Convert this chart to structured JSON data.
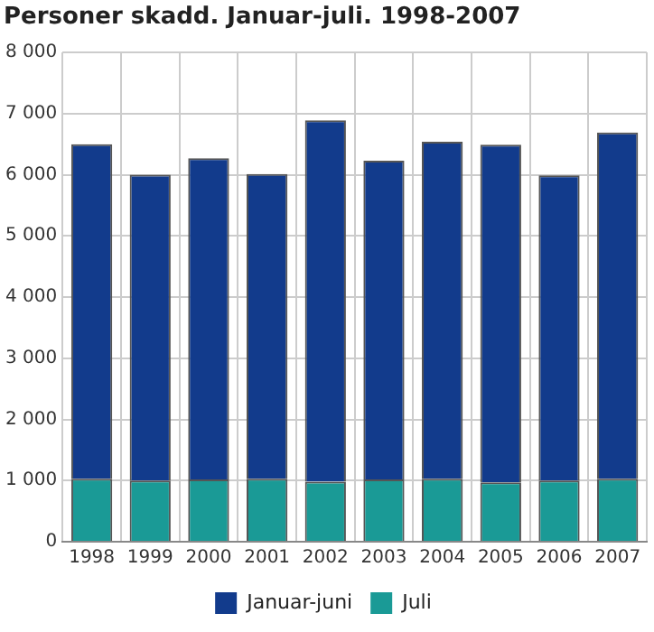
{
  "chart_data": {
    "type": "bar",
    "title": "Personer skadd. Januar-juli. 1998-2007",
    "stacked": true,
    "categories": [
      "1998",
      "1999",
      "2000",
      "2001",
      "2002",
      "2003",
      "2004",
      "2005",
      "2006",
      "2007"
    ],
    "series": [
      {
        "name": "Juli",
        "color": "#1a9a96",
        "values": [
          1030,
          1000,
          1020,
          1030,
          980,
          1020,
          1030,
          970,
          1000,
          1030
        ]
      },
      {
        "name": "Januar-juni",
        "color": "#123b8c",
        "values": [
          5470,
          5000,
          5250,
          4980,
          5910,
          5210,
          5510,
          5520,
          4990,
          5660
        ]
      }
    ],
    "ylim": [
      0,
      8000
    ],
    "yticks": [
      {
        "value": 0,
        "label": "0"
      },
      {
        "value": 1000,
        "label": "1 000"
      },
      {
        "value": 2000,
        "label": "2 000"
      },
      {
        "value": 3000,
        "label": "3 000"
      },
      {
        "value": 4000,
        "label": "4 000"
      },
      {
        "value": 5000,
        "label": "5 000"
      },
      {
        "value": 6000,
        "label": "6 000"
      },
      {
        "value": 7000,
        "label": "7 000"
      },
      {
        "value": 8000,
        "label": "8 000"
      }
    ],
    "grid": true,
    "legend": "bottom"
  }
}
